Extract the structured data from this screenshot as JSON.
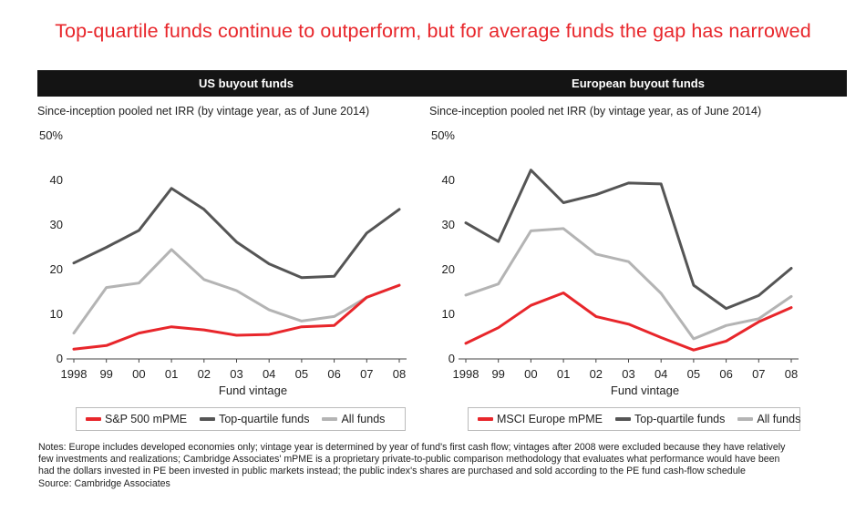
{
  "title": "Top-quartile funds continue to outperform, but for average funds the gap has narrowed",
  "colors": {
    "title": "#e8262b",
    "red": "#e8262b",
    "dark": "#555555",
    "light": "#b4b4b4",
    "header_bg": "#141414"
  },
  "chart_data": [
    {
      "type": "line",
      "title": "US buyout funds",
      "subtitle": "Since-inception pooled net IRR (by vintage year, as of June 2014)",
      "xlabel": "Fund vintage",
      "ylabel": "",
      "ylim": [
        0,
        50
      ],
      "y_ticks": [
        "0",
        "10",
        "20",
        "30",
        "40",
        "50%"
      ],
      "categories": [
        "1998",
        "99",
        "00",
        "01",
        "02",
        "03",
        "04",
        "05",
        "06",
        "07",
        "08"
      ],
      "series": [
        {
          "name": "S&P 500 mPME",
          "color": "red",
          "values": [
            2.2,
            3.0,
            5.8,
            7.2,
            6.5,
            5.3,
            5.5,
            7.2,
            7.5,
            13.8,
            16.5
          ]
        },
        {
          "name": "Top-quartile funds",
          "color": "dark",
          "values": [
            21.5,
            25.0,
            28.8,
            38.2,
            33.5,
            26.2,
            21.3,
            18.2,
            18.5,
            28.2,
            33.5
          ]
        },
        {
          "name": "All funds",
          "color": "light",
          "values": [
            5.8,
            16.0,
            17.0,
            24.5,
            17.8,
            15.3,
            11.0,
            8.5,
            9.5,
            13.8,
            16.5
          ]
        }
      ]
    },
    {
      "type": "line",
      "title": "European buyout funds",
      "subtitle": "Since-inception pooled net IRR (by vintage year, as of June 2014)",
      "xlabel": "Fund vintage",
      "ylabel": "",
      "ylim": [
        0,
        50
      ],
      "y_ticks": [
        "0",
        "10",
        "20",
        "30",
        "40",
        "50%"
      ],
      "categories": [
        "1998",
        "99",
        "00",
        "01",
        "02",
        "03",
        "04",
        "05",
        "06",
        "07",
        "08"
      ],
      "series": [
        {
          "name": "MSCI Europe mPME",
          "color": "red",
          "values": [
            3.5,
            7.0,
            12.0,
            14.8,
            9.5,
            7.8,
            4.8,
            2.0,
            4.0,
            8.3,
            11.5
          ]
        },
        {
          "name": "Top-quartile funds",
          "color": "dark",
          "values": [
            30.5,
            26.3,
            42.3,
            35.0,
            36.8,
            39.4,
            39.2,
            16.5,
            11.3,
            14.2,
            20.3
          ]
        },
        {
          "name": "All funds",
          "color": "light",
          "values": [
            14.3,
            16.8,
            28.7,
            29.2,
            23.5,
            21.8,
            14.7,
            4.5,
            7.5,
            9.0,
            14.0
          ]
        }
      ]
    }
  ],
  "notes": {
    "line1": "Notes: Europe includes developed economies only; vintage year is determined by year of fund's first cash flow; vintages after 2008 were excluded because they have relatively",
    "line2": "few investments and realizations; Cambridge Associates' mPME is a proprietary private-to-public comparison methodology that evaluates what performance would have been",
    "line3": "had the dollars invested in PE been invested in public markets instead; the public index's shares are purchased and sold according to the PE fund cash-flow schedule",
    "source": "Source: Cambridge Associates"
  }
}
